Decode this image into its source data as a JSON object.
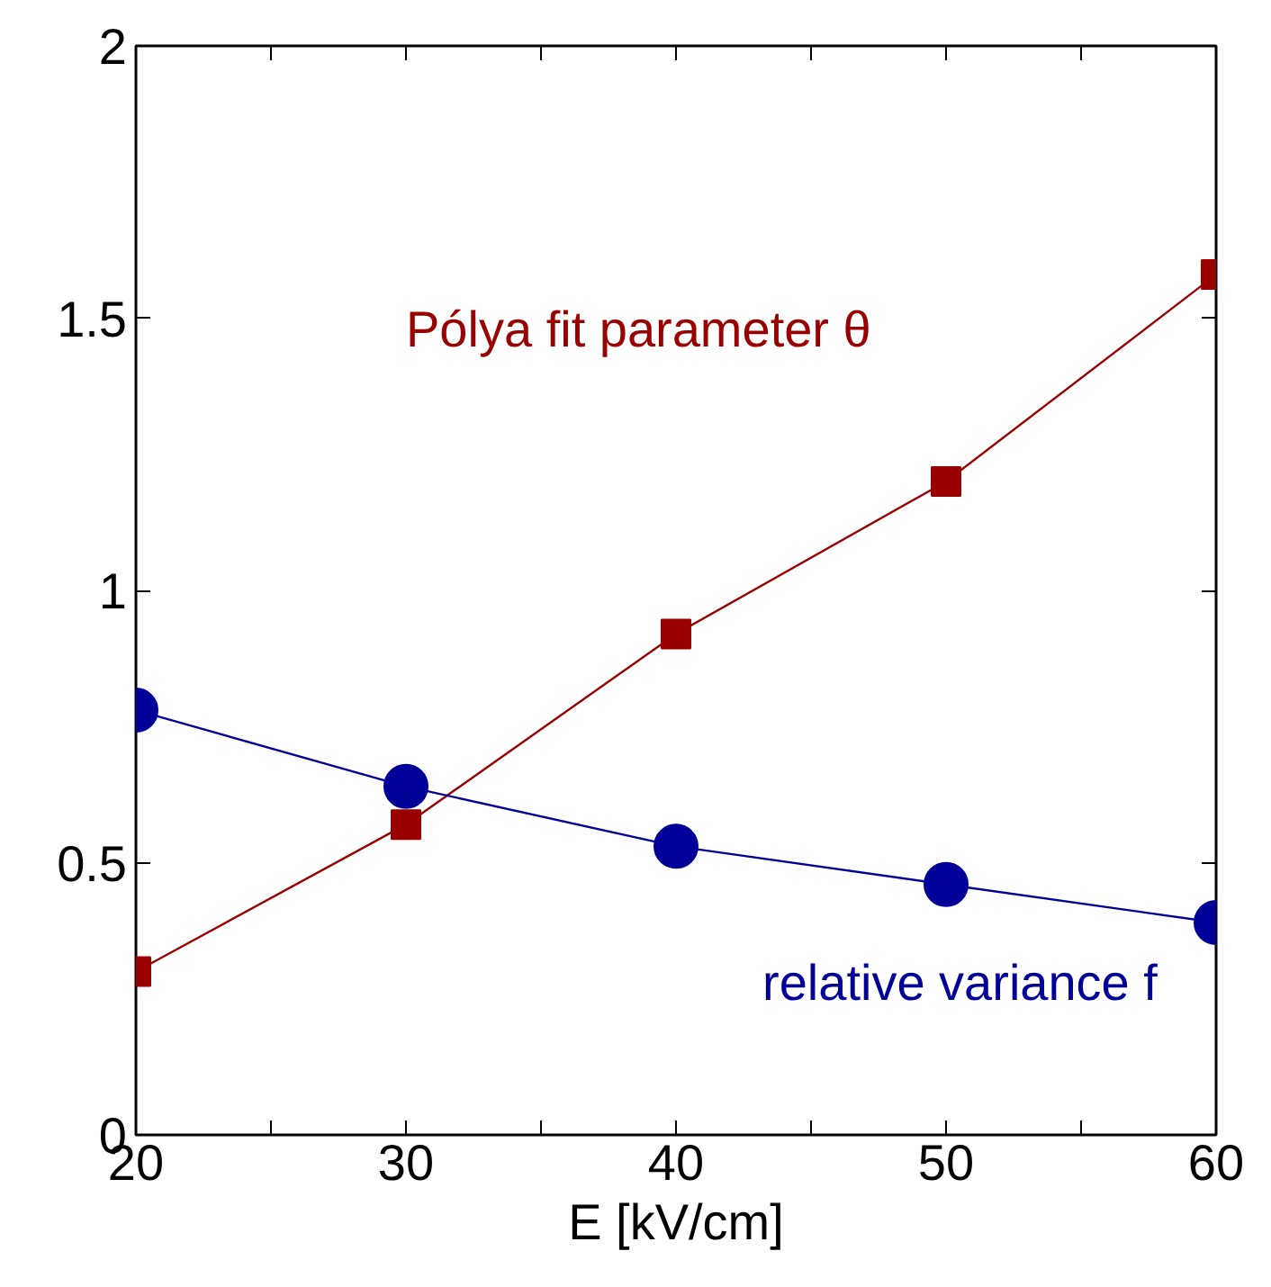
{
  "chart_data": {
    "type": "line",
    "xlabel": "E [kV/cm]",
    "x": [
      20,
      30,
      40,
      50,
      60
    ],
    "series": [
      {
        "name": "Pólya fit parameter θ",
        "color": "#990000",
        "marker": "square",
        "values": [
          0.3,
          0.57,
          0.92,
          1.2,
          1.58
        ]
      },
      {
        "name": "relative variance f",
        "color": "#000099",
        "marker": "circle",
        "values": [
          0.78,
          0.64,
          0.53,
          0.46,
          0.39
        ]
      }
    ],
    "xlim": [
      20,
      60
    ],
    "ylim": [
      0,
      2
    ],
    "xticks": [
      20,
      {
        "value": 25,
        "label": null
      },
      30,
      {
        "value": 35,
        "label": null
      },
      40,
      {
        "value": 45,
        "label": null
      },
      50,
      {
        "value": 55,
        "label": null
      },
      60
    ],
    "yticks": [
      0,
      0.5,
      1,
      1.5,
      2
    ],
    "grid": false
  }
}
